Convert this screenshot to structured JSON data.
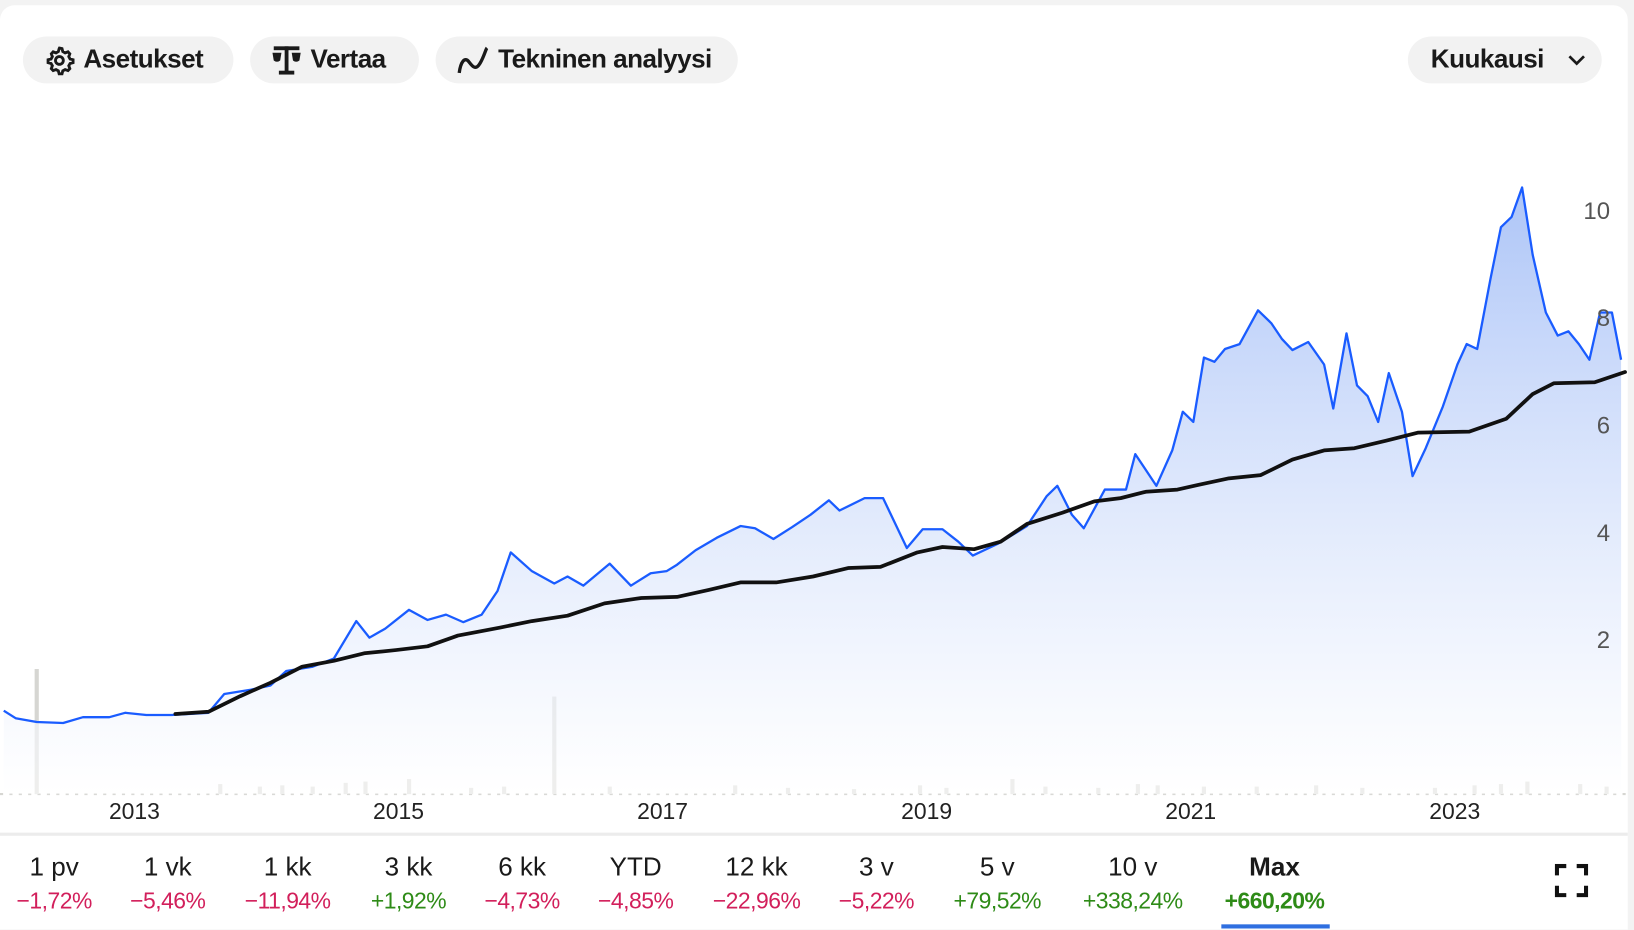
{
  "toolbar": {
    "settings_label": "Asetukset",
    "compare_label": "Vertaa",
    "technical_label": "Tekninen analyysi",
    "interval_label": "Kuukausi"
  },
  "icons": {
    "settings": "gear-icon",
    "compare": "scale-icon",
    "technical": "wave-icon",
    "interval": "chevron-down-icon",
    "fullscreen": "fullscreen-icon"
  },
  "colors": {
    "line": "#1a5cff",
    "ma": "#111111",
    "area_top": "#a9c2f7",
    "negative": "#d21f5b",
    "positive": "#2e8b17",
    "active_tab": "#2f6fe0",
    "volume": "#d6d6d2"
  },
  "periods": [
    {
      "label": "1 pv",
      "change": "−1,72%",
      "sign": "neg"
    },
    {
      "label": "1 vk",
      "change": "−5,46%",
      "sign": "neg"
    },
    {
      "label": "1 kk",
      "change": "−11,94%",
      "sign": "neg"
    },
    {
      "label": "3 kk",
      "change": "+1,92%",
      "sign": "pos"
    },
    {
      "label": "6 kk",
      "change": "−4,73%",
      "sign": "neg"
    },
    {
      "label": "YTD",
      "change": "−4,85%",
      "sign": "neg"
    },
    {
      "label": "12 kk",
      "change": "−22,96%",
      "sign": "neg"
    },
    {
      "label": "3 v",
      "change": "−5,22%",
      "sign": "neg"
    },
    {
      "label": "5 v",
      "change": "+79,52%",
      "sign": "pos"
    },
    {
      "label": "10 v",
      "change": "+338,24%",
      "sign": "pos"
    },
    {
      "label": "Max",
      "change": "+660,20%",
      "sign": "pos",
      "active": true
    }
  ],
  "chart_data": {
    "type": "area",
    "title": "",
    "xlabel": "",
    "ylabel": "",
    "xlim": [
      2012.0,
      2024.3
    ],
    "ylim": [
      0,
      11
    ],
    "x_ticks": [
      2013,
      2015,
      2017,
      2019,
      2021,
      2023
    ],
    "x_tick_labels": [
      "2013",
      "2015",
      "2017",
      "2019",
      "2021",
      "2023"
    ],
    "y_ticks": [
      2,
      4,
      6,
      8,
      10
    ],
    "y_tick_labels": [
      "2",
      "4",
      "6",
      "8",
      "10"
    ],
    "y_axis_position": "right",
    "grid": false,
    "series": [
      {
        "name": "Price",
        "type": "area",
        "points": [
          [
            2012.01,
            0.68
          ],
          [
            2012.1,
            0.54
          ],
          [
            2012.26,
            0.47
          ],
          [
            2012.46,
            0.45
          ],
          [
            2012.61,
            0.56
          ],
          [
            2012.81,
            0.56
          ],
          [
            2012.93,
            0.64
          ],
          [
            2013.09,
            0.6
          ],
          [
            2013.28,
            0.6
          ],
          [
            2013.56,
            0.64
          ],
          [
            2013.68,
            0.99
          ],
          [
            2013.88,
            1.07
          ],
          [
            2014.03,
            1.15
          ],
          [
            2014.15,
            1.42
          ],
          [
            2014.35,
            1.5
          ],
          [
            2014.51,
            1.65
          ],
          [
            2014.68,
            2.35
          ],
          [
            2014.78,
            2.04
          ],
          [
            2014.9,
            2.21
          ],
          [
            2015.08,
            2.56
          ],
          [
            2015.22,
            2.37
          ],
          [
            2015.36,
            2.47
          ],
          [
            2015.49,
            2.33
          ],
          [
            2015.63,
            2.47
          ],
          [
            2015.75,
            2.91
          ],
          [
            2015.85,
            3.63
          ],
          [
            2016.01,
            3.28
          ],
          [
            2016.18,
            3.05
          ],
          [
            2016.28,
            3.18
          ],
          [
            2016.4,
            3.01
          ],
          [
            2016.6,
            3.42
          ],
          [
            2016.76,
            3.01
          ],
          [
            2016.91,
            3.24
          ],
          [
            2017.03,
            3.28
          ],
          [
            2017.11,
            3.4
          ],
          [
            2017.25,
            3.67
          ],
          [
            2017.41,
            3.9
          ],
          [
            2017.59,
            4.12
          ],
          [
            2017.7,
            4.08
          ],
          [
            2017.84,
            3.88
          ],
          [
            2017.98,
            4.1
          ],
          [
            2018.12,
            4.33
          ],
          [
            2018.26,
            4.6
          ],
          [
            2018.34,
            4.41
          ],
          [
            2018.53,
            4.64
          ],
          [
            2018.67,
            4.64
          ],
          [
            2018.85,
            3.71
          ],
          [
            2018.97,
            4.06
          ],
          [
            2019.12,
            4.06
          ],
          [
            2019.24,
            3.83
          ],
          [
            2019.35,
            3.57
          ],
          [
            2019.54,
            3.79
          ],
          [
            2019.76,
            4.12
          ],
          [
            2019.91,
            4.68
          ],
          [
            2019.99,
            4.87
          ],
          [
            2020.1,
            4.33
          ],
          [
            2020.19,
            4.08
          ],
          [
            2020.35,
            4.8
          ],
          [
            2020.51,
            4.8
          ],
          [
            2020.58,
            5.46
          ],
          [
            2020.74,
            4.87
          ],
          [
            2020.86,
            5.53
          ],
          [
            2020.94,
            6.25
          ],
          [
            2021.02,
            6.06
          ],
          [
            2021.1,
            7.26
          ],
          [
            2021.18,
            7.18
          ],
          [
            2021.26,
            7.42
          ],
          [
            2021.37,
            7.51
          ],
          [
            2021.51,
            8.14
          ],
          [
            2021.61,
            7.9
          ],
          [
            2021.69,
            7.61
          ],
          [
            2021.77,
            7.4
          ],
          [
            2021.89,
            7.55
          ],
          [
            2022.01,
            7.13
          ],
          [
            2022.08,
            6.31
          ],
          [
            2022.18,
            7.71
          ],
          [
            2022.26,
            6.74
          ],
          [
            2022.34,
            6.54
          ],
          [
            2022.42,
            6.06
          ],
          [
            2022.5,
            6.97
          ],
          [
            2022.6,
            6.25
          ],
          [
            2022.68,
            5.05
          ],
          [
            2022.78,
            5.57
          ],
          [
            2022.91,
            6.35
          ],
          [
            2023.02,
            7.13
          ],
          [
            2023.09,
            7.51
          ],
          [
            2023.17,
            7.42
          ],
          [
            2023.27,
            8.72
          ],
          [
            2023.35,
            9.69
          ],
          [
            2023.43,
            9.88
          ],
          [
            2023.51,
            10.43
          ],
          [
            2023.59,
            9.17
          ],
          [
            2023.69,
            8.1
          ],
          [
            2023.78,
            7.67
          ],
          [
            2023.86,
            7.75
          ],
          [
            2023.94,
            7.51
          ],
          [
            2024.02,
            7.22
          ],
          [
            2024.1,
            8.1
          ],
          [
            2024.19,
            8.1
          ],
          [
            2024.26,
            7.22
          ]
        ]
      },
      {
        "name": "Moving average",
        "type": "line",
        "points": [
          [
            2013.31,
            0.62
          ],
          [
            2013.56,
            0.66
          ],
          [
            2013.8,
            0.95
          ],
          [
            2014.03,
            1.2
          ],
          [
            2014.27,
            1.5
          ],
          [
            2014.51,
            1.61
          ],
          [
            2014.74,
            1.75
          ],
          [
            2014.98,
            1.81
          ],
          [
            2015.22,
            1.88
          ],
          [
            2015.45,
            2.08
          ],
          [
            2015.77,
            2.23
          ],
          [
            2016.01,
            2.35
          ],
          [
            2016.28,
            2.45
          ],
          [
            2016.56,
            2.68
          ],
          [
            2016.84,
            2.78
          ],
          [
            2017.11,
            2.8
          ],
          [
            2017.35,
            2.93
          ],
          [
            2017.59,
            3.07
          ],
          [
            2017.86,
            3.07
          ],
          [
            2018.14,
            3.18
          ],
          [
            2018.41,
            3.34
          ],
          [
            2018.65,
            3.36
          ],
          [
            2018.93,
            3.63
          ],
          [
            2019.12,
            3.73
          ],
          [
            2019.36,
            3.69
          ],
          [
            2019.56,
            3.83
          ],
          [
            2019.76,
            4.16
          ],
          [
            2020.03,
            4.37
          ],
          [
            2020.27,
            4.58
          ],
          [
            2020.47,
            4.64
          ],
          [
            2020.66,
            4.76
          ],
          [
            2020.9,
            4.8
          ],
          [
            2021.06,
            4.89
          ],
          [
            2021.29,
            5.01
          ],
          [
            2021.53,
            5.07
          ],
          [
            2021.77,
            5.36
          ],
          [
            2022.01,
            5.53
          ],
          [
            2022.24,
            5.57
          ],
          [
            2022.48,
            5.71
          ],
          [
            2022.72,
            5.86
          ],
          [
            2023.11,
            5.88
          ],
          [
            2023.39,
            6.12
          ],
          [
            2023.59,
            6.58
          ],
          [
            2023.75,
            6.78
          ],
          [
            2024.06,
            6.8
          ],
          [
            2024.29,
            6.99
          ]
        ]
      }
    ],
    "volume": {
      "name": "Volume",
      "relative": [
        [
          2012.26,
          100
        ],
        [
          2016.18,
          78
        ],
        [
          2013.65,
          8
        ],
        [
          2013.95,
          6
        ],
        [
          2014.12,
          7
        ],
        [
          2014.35,
          6
        ],
        [
          2014.6,
          9
        ],
        [
          2014.75,
          10
        ],
        [
          2015.08,
          12
        ],
        [
          2015.55,
          5
        ],
        [
          2015.8,
          6
        ],
        [
          2016.6,
          6
        ],
        [
          2017.55,
          7
        ],
        [
          2017.95,
          5
        ],
        [
          2018.45,
          4
        ],
        [
          2018.95,
          7
        ],
        [
          2019.15,
          5
        ],
        [
          2019.65,
          12
        ],
        [
          2019.9,
          6
        ],
        [
          2020.3,
          5
        ],
        [
          2020.6,
          8
        ],
        [
          2020.75,
          7
        ],
        [
          2021.1,
          6
        ],
        [
          2021.5,
          6
        ],
        [
          2021.95,
          7
        ],
        [
          2022.3,
          5
        ],
        [
          2022.85,
          5
        ],
        [
          2023.15,
          7
        ],
        [
          2023.35,
          8
        ],
        [
          2023.55,
          10
        ],
        [
          2023.95,
          8
        ],
        [
          2024.15,
          6
        ]
      ]
    }
  }
}
